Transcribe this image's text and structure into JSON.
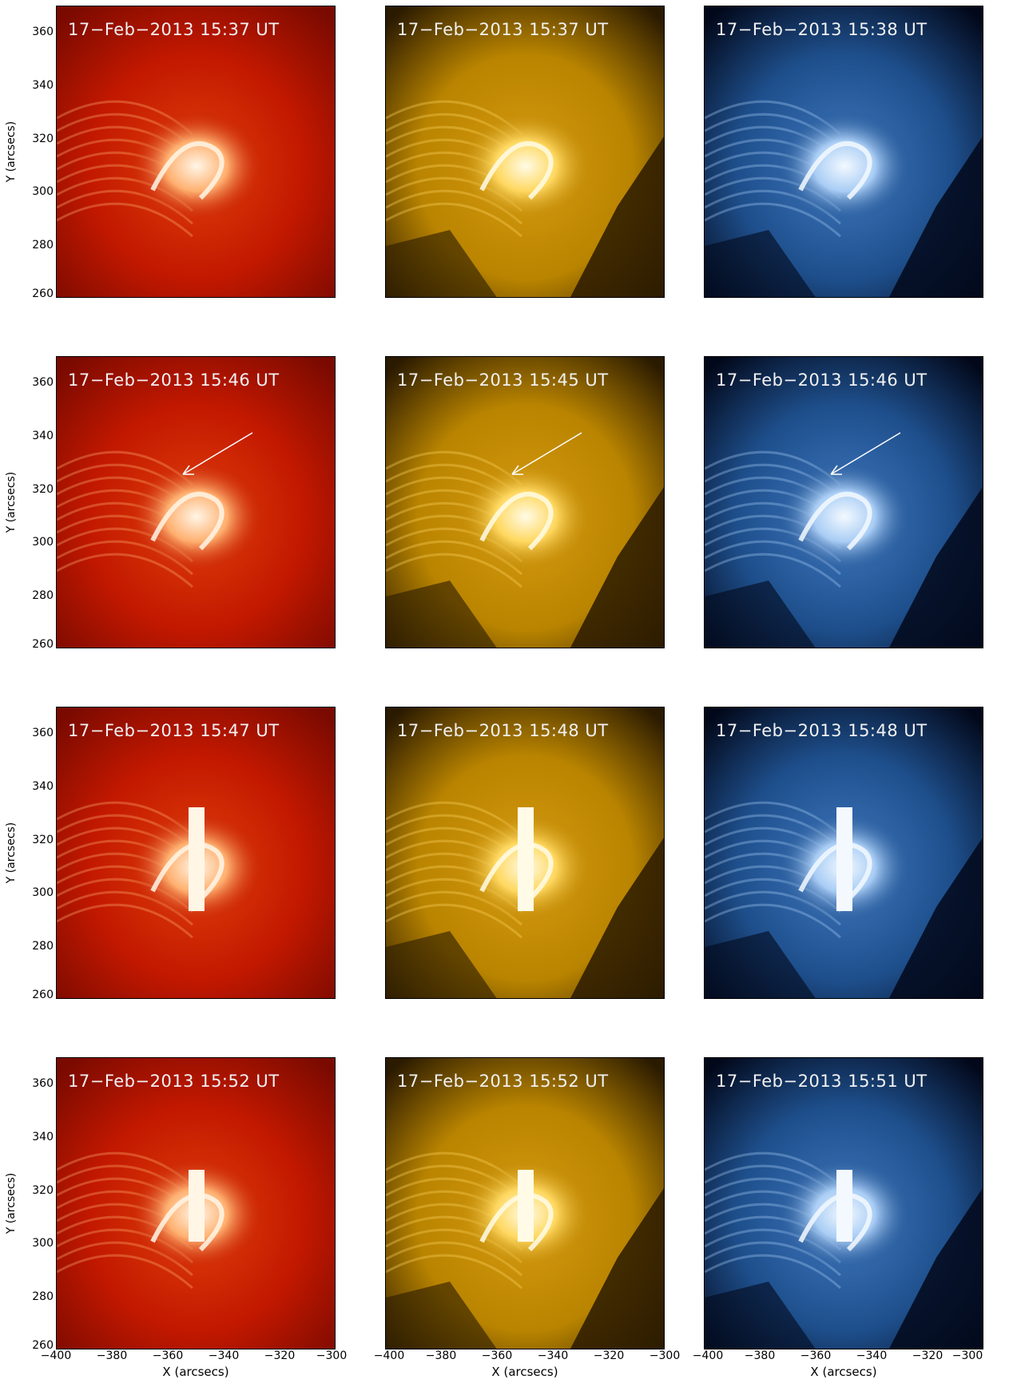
{
  "figure": {
    "y_axis": {
      "label": "Y (arcsecs)",
      "ticks": [
        "360",
        "340",
        "320",
        "300",
        "280",
        "260"
      ]
    },
    "x_axis": {
      "label": "X (arcsecs)",
      "ticks": [
        "−400",
        "−380",
        "−360",
        "−340",
        "−320",
        "−300"
      ]
    },
    "colors": {
      "red_channel": "#c21800",
      "gold_channel": "#b98400",
      "blue_channel": "#1e4f8c"
    },
    "panels": [
      {
        "row": 1,
        "col": 1,
        "channel": "red",
        "timestamp": "17−Feb−2013 15:37 UT",
        "arrow": false
      },
      {
        "row": 1,
        "col": 2,
        "channel": "gold",
        "timestamp": "17−Feb−2013 15:37 UT",
        "arrow": false
      },
      {
        "row": 1,
        "col": 3,
        "channel": "blue",
        "timestamp": "17−Feb−2013 15:38 UT",
        "arrow": false
      },
      {
        "row": 2,
        "col": 1,
        "channel": "red",
        "timestamp": "17−Feb−2013 15:46 UT",
        "arrow": true
      },
      {
        "row": 2,
        "col": 2,
        "channel": "gold",
        "timestamp": "17−Feb−2013 15:45 UT",
        "arrow": true
      },
      {
        "row": 2,
        "col": 3,
        "channel": "blue",
        "timestamp": "17−Feb−2013 15:46 UT",
        "arrow": true
      },
      {
        "row": 3,
        "col": 1,
        "channel": "red",
        "timestamp": "17−Feb−2013 15:47 UT",
        "arrow": false
      },
      {
        "row": 3,
        "col": 2,
        "channel": "gold",
        "timestamp": "17−Feb−2013 15:48 UT",
        "arrow": false
      },
      {
        "row": 3,
        "col": 3,
        "channel": "blue",
        "timestamp": "17−Feb−2013 15:48 UT",
        "arrow": false
      },
      {
        "row": 4,
        "col": 1,
        "channel": "red",
        "timestamp": "17−Feb−2013 15:52 UT",
        "arrow": false
      },
      {
        "row": 4,
        "col": 2,
        "channel": "gold",
        "timestamp": "17−Feb−2013 15:52 UT",
        "arrow": false
      },
      {
        "row": 4,
        "col": 3,
        "channel": "blue",
        "timestamp": "17−Feb−2013 15:51 UT",
        "arrow": false
      }
    ]
  }
}
